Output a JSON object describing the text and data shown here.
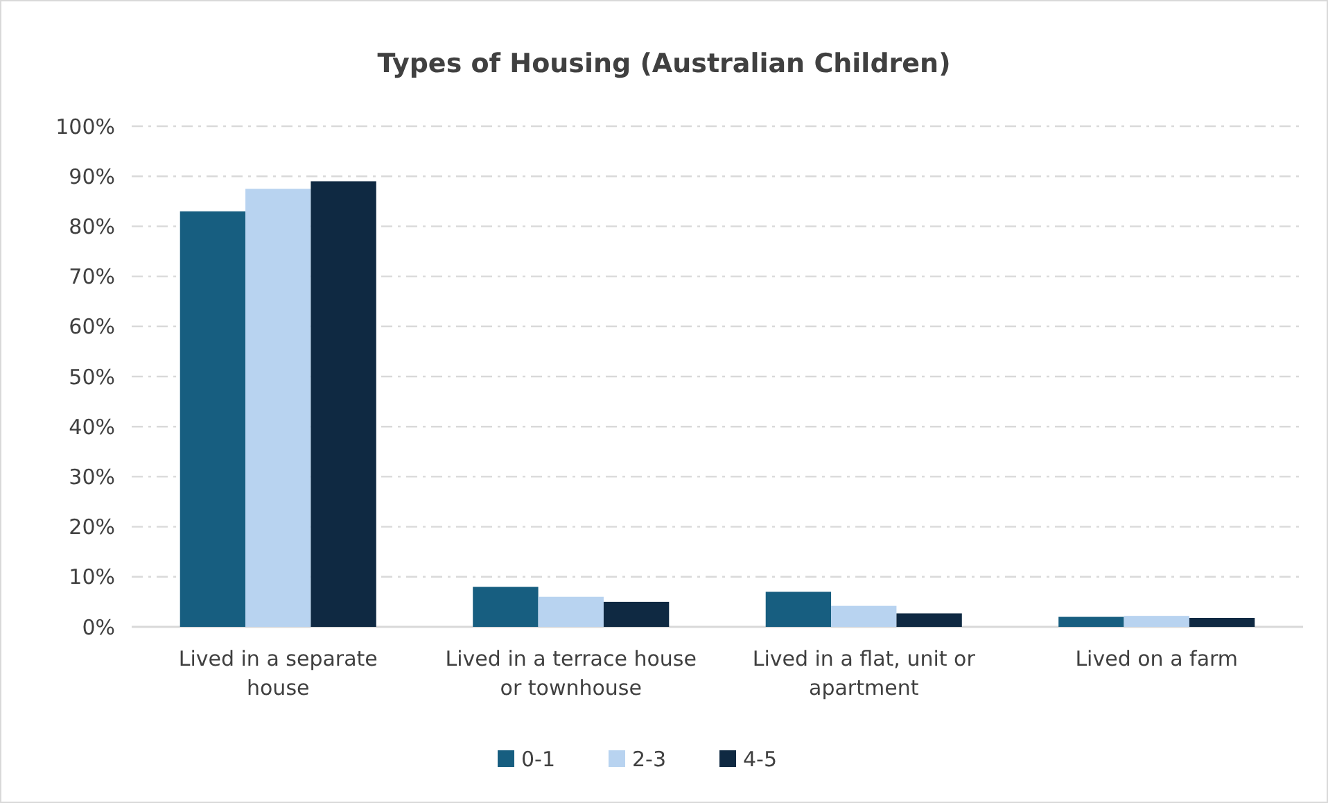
{
  "chart_data": {
    "type": "bar",
    "title": "Types of Housing (Australian Children)",
    "categories": [
      "Lived in a separate house",
      "Lived in a terrace house or townhouse",
      "Lived in a flat, unit or apartment",
      "Lived on a farm"
    ],
    "series": [
      {
        "name": "0-1",
        "color": "#175e80",
        "values": [
          83,
          8,
          7,
          2
        ]
      },
      {
        "name": "2-3",
        "color": "#b8d3f0",
        "values": [
          87.5,
          6,
          4.2,
          2.2
        ]
      },
      {
        "name": "4-5",
        "color": "#0f2942",
        "values": [
          89,
          5,
          2.7,
          1.8
        ]
      }
    ],
    "ylim": [
      0,
      100
    ],
    "yticks": [
      {
        "value": 0,
        "label": "0%"
      },
      {
        "value": 10,
        "label": "10%"
      },
      {
        "value": 20,
        "label": "20%"
      },
      {
        "value": 30,
        "label": "30%"
      },
      {
        "value": 40,
        "label": "40%"
      },
      {
        "value": 50,
        "label": "50%"
      },
      {
        "value": 60,
        "label": "60%"
      },
      {
        "value": 70,
        "label": "70%"
      },
      {
        "value": 80,
        "label": "80%"
      },
      {
        "value": 90,
        "label": "90%"
      },
      {
        "value": 100,
        "label": "100%"
      }
    ],
    "grid": "y",
    "legend": "bottom"
  }
}
